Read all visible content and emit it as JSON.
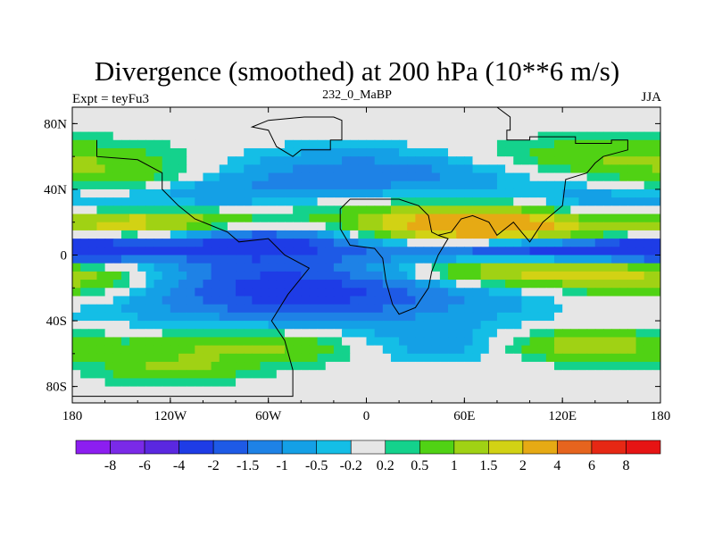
{
  "chart_data": {
    "type": "heatmap",
    "title": "Divergence (smoothed) at 200 hPa (10**6 m/s)",
    "left_string": "Expt = teyFu3",
    "center_string": "232_0_MaBP",
    "right_string": "JJA",
    "x_range": [
      -180,
      180
    ],
    "y_range": [
      -90,
      90
    ],
    "x_ticks": [
      {
        "value": -180,
        "label": "180"
      },
      {
        "value": -120,
        "label": "120W"
      },
      {
        "value": -60,
        "label": "60W"
      },
      {
        "value": 0,
        "label": "0"
      },
      {
        "value": 60,
        "label": "60E"
      },
      {
        "value": 120,
        "label": "120E"
      },
      {
        "value": 180,
        "label": "180"
      }
    ],
    "y_ticks": [
      {
        "value": 80,
        "label": "80N"
      },
      {
        "value": 40,
        "label": "40N"
      },
      {
        "value": 0,
        "label": "0"
      },
      {
        "value": -40,
        "label": "40S"
      },
      {
        "value": -80,
        "label": "80S"
      }
    ],
    "colorbar": {
      "labels": [
        "-8",
        "-6",
        "-4",
        "-2",
        "-1.5",
        "-1",
        "-0.5",
        "-0.2",
        "0.2",
        "0.5",
        "1",
        "1.5",
        "2",
        "4",
        "6",
        "8"
      ],
      "colors": [
        "#8c1ef0",
        "#7a2ae8",
        "#5a28e0",
        "#1e3ce6",
        "#1e5ae6",
        "#1e82e6",
        "#14a0e6",
        "#14bee6",
        "#e6e6e6",
        "#14d28c",
        "#50d214",
        "#a0d214",
        "#d2d214",
        "#e6aa14",
        "#e6641e",
        "#e62814",
        "#e61414"
      ]
    },
    "continent_outline": [
      [
        -38,
        84
      ],
      [
        -20,
        84
      ],
      [
        -15,
        82
      ],
      [
        -15,
        70
      ],
      [
        -22,
        70
      ],
      [
        -22,
        64
      ],
      [
        -40,
        64
      ],
      [
        -45,
        60
      ],
      [
        -55,
        66
      ],
      [
        -60,
        76
      ],
      [
        -70,
        78
      ],
      [
        -60,
        82
      ],
      [
        -38,
        84
      ]
    ],
    "land_outline": [
      [
        0,
        90
      ],
      [
        80,
        90
      ],
      [
        88,
        84
      ],
      [
        88,
        76
      ],
      [
        86,
        76
      ],
      [
        86,
        70
      ],
      [
        100,
        70
      ],
      [
        100,
        72
      ],
      [
        128,
        72
      ],
      [
        128,
        68
      ],
      [
        150,
        68
      ],
      [
        150,
        70
      ],
      [
        160,
        70
      ],
      [
        160,
        64
      ],
      [
        145,
        60
      ],
      [
        140,
        56
      ],
      [
        135,
        50
      ],
      [
        122,
        46
      ],
      [
        120,
        30
      ],
      [
        108,
        20
      ],
      [
        100,
        8
      ],
      [
        95,
        14
      ],
      [
        90,
        20
      ],
      [
        80,
        12
      ],
      [
        75,
        20
      ],
      [
        65,
        24
      ],
      [
        58,
        22
      ],
      [
        52,
        14
      ],
      [
        44,
        12
      ],
      [
        40,
        14
      ],
      [
        38,
        24
      ],
      [
        32,
        30
      ],
      [
        20,
        34
      ],
      [
        10,
        34
      ],
      [
        -5,
        34
      ],
      [
        -10,
        34
      ],
      [
        -16,
        28
      ],
      [
        -16,
        16
      ],
      [
        -10,
        6
      ],
      [
        5,
        4
      ],
      [
        10,
        -2
      ],
      [
        12,
        -16
      ],
      [
        16,
        -30
      ],
      [
        20,
        -36
      ],
      [
        30,
        -32
      ],
      [
        38,
        -20
      ],
      [
        40,
        -10
      ],
      [
        44,
        0
      ],
      [
        50,
        10
      ],
      [
        44,
        12
      ]
    ],
    "land_outline2": [
      [
        -180,
        -90
      ],
      [
        -180,
        -86
      ],
      [
        -45,
        -86
      ],
      [
        -45,
        -70
      ],
      [
        -50,
        -52
      ],
      [
        -58,
        -40
      ],
      [
        -48,
        -24
      ],
      [
        -35,
        -8
      ],
      [
        -50,
        0
      ],
      [
        -60,
        10
      ],
      [
        -78,
        8
      ],
      [
        -85,
        14
      ],
      [
        -95,
        18
      ],
      [
        -105,
        22
      ],
      [
        -115,
        30
      ],
      [
        -125,
        40
      ],
      [
        -125,
        50
      ],
      [
        -140,
        58
      ],
      [
        -165,
        60
      ],
      [
        -165,
        70
      ]
    ]
  }
}
